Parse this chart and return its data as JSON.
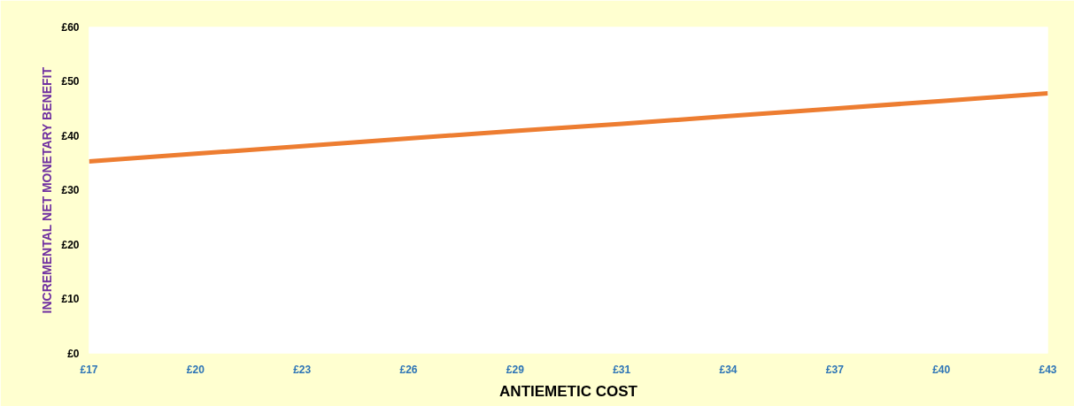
{
  "chart_data": {
    "type": "line",
    "xlabel": "ANTIEMETIC COST",
    "ylabel": "INCREMENTAL NET MONETARY BENEFIT",
    "categories": [
      "£17",
      "£20",
      "£23",
      "£26",
      "£29",
      "£31",
      "£34",
      "£37",
      "£40",
      "£43"
    ],
    "series": [
      {
        "color": "#ed7d31",
        "values": [
          35.3,
          36.7,
          38.1,
          39.5,
          40.9,
          42.2,
          43.6,
          45.0,
          46.4,
          47.8
        ]
      }
    ],
    "ylim": [
      0,
      60
    ],
    "yticks": [
      {
        "value": 0,
        "label": "£0"
      },
      {
        "value": 10,
        "label": "£10"
      },
      {
        "value": 20,
        "label": "£20"
      },
      {
        "value": 30,
        "label": "£30"
      },
      {
        "value": 40,
        "label": "£40"
      },
      {
        "value": 50,
        "label": "£50"
      },
      {
        "value": 60,
        "label": "£60"
      }
    ],
    "grid": false,
    "marker": "none",
    "line_style": "solid"
  }
}
